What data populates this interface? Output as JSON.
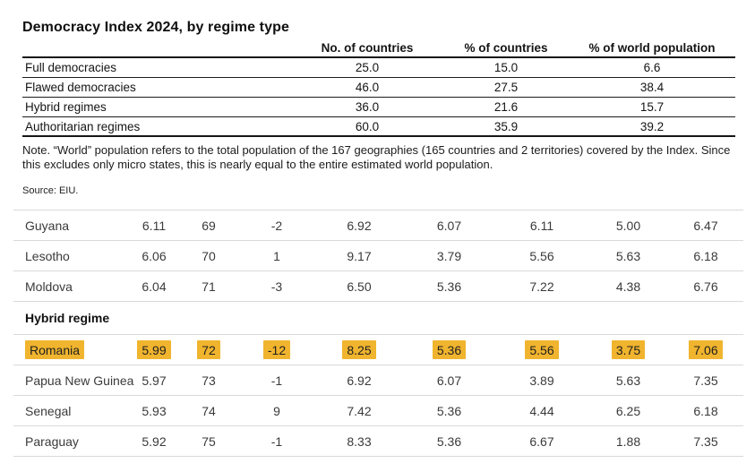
{
  "colors": {
    "highlight": "#F0B42E"
  },
  "header": {
    "title": "Democracy Index 2024, by regime type"
  },
  "regime_table": {
    "columns": [
      "No. of countries",
      "% of countries",
      "% of world population"
    ],
    "rows": [
      {
        "label": "Full democracies",
        "values": [
          "25.0",
          "15.0",
          "6.6"
        ]
      },
      {
        "label": "Flawed democracies",
        "values": [
          "46.0",
          "27.5",
          "38.4"
        ]
      },
      {
        "label": "Hybrid regimes",
        "values": [
          "36.0",
          "21.6",
          "15.7"
        ]
      },
      {
        "label": "Authoritarian regimes",
        "values": [
          "60.0",
          "35.9",
          "39.2"
        ]
      }
    ],
    "note": "Note. “World” population refers to the total population of the 167 geographies (165 countries and 2 territories) covered by the Index. Since this excludes only micro states, this is nearly equal to the entire estimated world population.",
    "source": "Source: EIU."
  },
  "ranking_table": {
    "section_heading": "Hybrid regime",
    "rows": [
      {
        "type": "data",
        "country": "Guyana",
        "values": [
          "6.11",
          "69",
          "-2",
          "6.92",
          "6.07",
          "6.11",
          "5.00",
          "6.47"
        ],
        "highlighted": false
      },
      {
        "type": "data",
        "country": "Lesotho",
        "values": [
          "6.06",
          "70",
          "1",
          "9.17",
          "3.79",
          "5.56",
          "5.63",
          "6.18"
        ],
        "highlighted": false
      },
      {
        "type": "data",
        "country": "Moldova",
        "values": [
          "6.04",
          "71",
          "-3",
          "6.50",
          "5.36",
          "7.22",
          "4.38",
          "6.76"
        ],
        "highlighted": false
      },
      {
        "type": "section",
        "label": "Hybrid regime"
      },
      {
        "type": "data",
        "country": "Romania",
        "values": [
          "5.99",
          "72",
          "-12",
          "8.25",
          "5.36",
          "5.56",
          "3.75",
          "7.06"
        ],
        "highlighted": true
      },
      {
        "type": "data",
        "country": "Papua New Guinea",
        "values": [
          "5.97",
          "73",
          "-1",
          "6.92",
          "6.07",
          "3.89",
          "5.63",
          "7.35"
        ],
        "highlighted": false
      },
      {
        "type": "data",
        "country": "Senegal",
        "values": [
          "5.93",
          "74",
          "9",
          "7.42",
          "5.36",
          "4.44",
          "6.25",
          "6.18"
        ],
        "highlighted": false
      },
      {
        "type": "data",
        "country": "Paraguay",
        "values": [
          "5.92",
          "75",
          "-1",
          "8.33",
          "5.36",
          "6.67",
          "1.88",
          "7.35"
        ],
        "highlighted": false
      }
    ]
  }
}
